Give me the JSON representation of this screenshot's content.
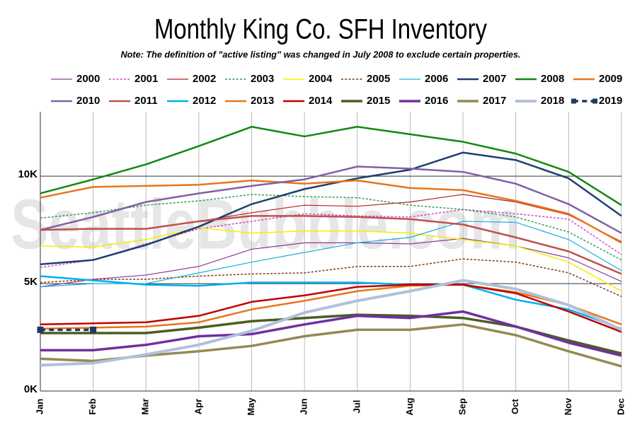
{
  "chart_data": {
    "type": "line",
    "title": "Monthly King Co. SFH Inventory",
    "subtitle": "Note: The definition of \"active listing\" was changed in July 2008 to exclude certain properties.",
    "watermark": "SeattleBubble.com",
    "categories": [
      "Jan",
      "Feb",
      "Mar",
      "Apr",
      "May",
      "Jun",
      "Jul",
      "Aug",
      "Sep",
      "Oct",
      "Nov",
      "Dec"
    ],
    "ylim": [
      0,
      13000
    ],
    "yticks": [
      {
        "value": 0,
        "label": "0K"
      },
      {
        "value": 5000,
        "label": "5K"
      },
      {
        "value": 10000,
        "label": "10K"
      }
    ],
    "grid": true,
    "legend": "top",
    "series": [
      {
        "name": "2000",
        "color": "#8b3a9c",
        "width": 1.2,
        "dashed": false,
        "values": [
          4850,
          5200,
          5400,
          5800,
          6600,
          6900,
          6900,
          6850,
          7100,
          6750,
          6200,
          5100
        ]
      },
      {
        "name": "2001",
        "color": "#e040c0",
        "width": 1.5,
        "dashed": true,
        "values": [
          5750,
          6100,
          6850,
          7550,
          7900,
          8250,
          8150,
          8100,
          8450,
          8250,
          8000,
          6350
        ]
      },
      {
        "name": "2002",
        "color": "#b22222",
        "width": 1.2,
        "dashed": false,
        "values": [
          7500,
          7550,
          7550,
          7900,
          8300,
          8650,
          8600,
          8800,
          9150,
          8800,
          8200,
          6950
        ]
      },
      {
        "name": "2003",
        "color": "#2ca05a",
        "width": 1.5,
        "dashed": true,
        "values": [
          8050,
          8300,
          8650,
          8850,
          9150,
          9050,
          9000,
          8650,
          8450,
          8100,
          7400,
          6100
        ]
      },
      {
        "name": "2004",
        "color": "#f0f000",
        "width": 1.5,
        "dashed": false,
        "values": [
          6750,
          6700,
          7050,
          7600,
          7350,
          7450,
          7450,
          7350,
          7050,
          6750,
          6000,
          4650
        ]
      },
      {
        "name": "2005",
        "color": "#7a3b10",
        "width": 1.5,
        "dashed": true,
        "values": [
          5050,
          5200,
          5200,
          5350,
          5450,
          5500,
          5800,
          5800,
          6150,
          6000,
          5500,
          4400
        ]
      },
      {
        "name": "2006",
        "color": "#1ab0e0",
        "width": 1.2,
        "dashed": false,
        "values": [
          4850,
          5000,
          5000,
          5500,
          6000,
          6450,
          6900,
          7150,
          7900,
          7850,
          7050,
          5600
        ]
      },
      {
        "name": "2007",
        "color": "#1f3f6f",
        "width": 2.5,
        "dashed": false,
        "values": [
          5900,
          6100,
          6800,
          7650,
          8700,
          9400,
          9900,
          10300,
          11100,
          10750,
          9900,
          8150
        ]
      },
      {
        "name": "2008",
        "color": "#118811",
        "width": 2.5,
        "dashed": false,
        "values": [
          9200,
          9850,
          10550,
          11400,
          12300,
          11850,
          12300,
          11950,
          11600,
          11050,
          10200,
          8650
        ]
      },
      {
        "name": "2009",
        "color": "#e8761b",
        "width": 2.5,
        "dashed": false,
        "values": [
          9000,
          9500,
          9550,
          9600,
          9800,
          9650,
          9800,
          9450,
          9350,
          8850,
          8250,
          6900
        ]
      },
      {
        "name": "2010",
        "color": "#8060a8",
        "width": 2.5,
        "dashed": false,
        "values": [
          7500,
          8100,
          8800,
          9200,
          9550,
          9850,
          10450,
          10350,
          10200,
          9650,
          8700,
          7350
        ]
      },
      {
        "name": "2011",
        "color": "#c0504d",
        "width": 2.5,
        "dashed": false,
        "values": [
          7500,
          7550,
          7550,
          7900,
          8150,
          8150,
          8100,
          8000,
          7750,
          7150,
          6500,
          5450
        ]
      },
      {
        "name": "2012",
        "color": "#00b0f0",
        "width": 2.5,
        "dashed": false,
        "values": [
          5350,
          5150,
          4950,
          4900,
          5050,
          5050,
          5050,
          4950,
          4950,
          4250,
          3800,
          2900
        ]
      },
      {
        "name": "2013",
        "color": "#e8761b",
        "width": 2.5,
        "dashed": false,
        "values": [
          2900,
          2950,
          3000,
          3200,
          3800,
          4200,
          4650,
          4900,
          4950,
          4600,
          4000,
          3100
        ]
      },
      {
        "name": "2014",
        "color": "#c00000",
        "width": 2.5,
        "dashed": false,
        "values": [
          3100,
          3150,
          3200,
          3500,
          4150,
          4450,
          4850,
          4950,
          4950,
          4550,
          3700,
          2750
        ]
      },
      {
        "name": "2015",
        "color": "#4a5e23",
        "width": 3.5,
        "dashed": false,
        "values": [
          2700,
          2700,
          2700,
          2950,
          3250,
          3400,
          3550,
          3500,
          3400,
          3000,
          2350,
          1750
        ]
      },
      {
        "name": "2016",
        "color": "#7030a0",
        "width": 3.5,
        "dashed": false,
        "values": [
          1900,
          1900,
          2150,
          2550,
          2650,
          3100,
          3500,
          3400,
          3700,
          3000,
          2250,
          1650
        ]
      },
      {
        "name": "2017",
        "color": "#948a54",
        "width": 3.5,
        "dashed": false,
        "values": [
          1500,
          1400,
          1650,
          1850,
          2100,
          2550,
          2850,
          2850,
          3100,
          2600,
          1850,
          1150
        ]
      },
      {
        "name": "2018",
        "color": "#b0c0dc",
        "width": 4,
        "dashed": false,
        "values": [
          1200,
          1300,
          1700,
          2150,
          2800,
          3650,
          4200,
          4650,
          5150,
          4750,
          4000,
          2850
        ]
      },
      {
        "name": "2019",
        "color": "#1f3864",
        "width": 3.5,
        "dashed": true,
        "marker": "square",
        "values": [
          2850,
          2850,
          null,
          null,
          null,
          null,
          null,
          null,
          null,
          null,
          null,
          null
        ]
      }
    ]
  }
}
